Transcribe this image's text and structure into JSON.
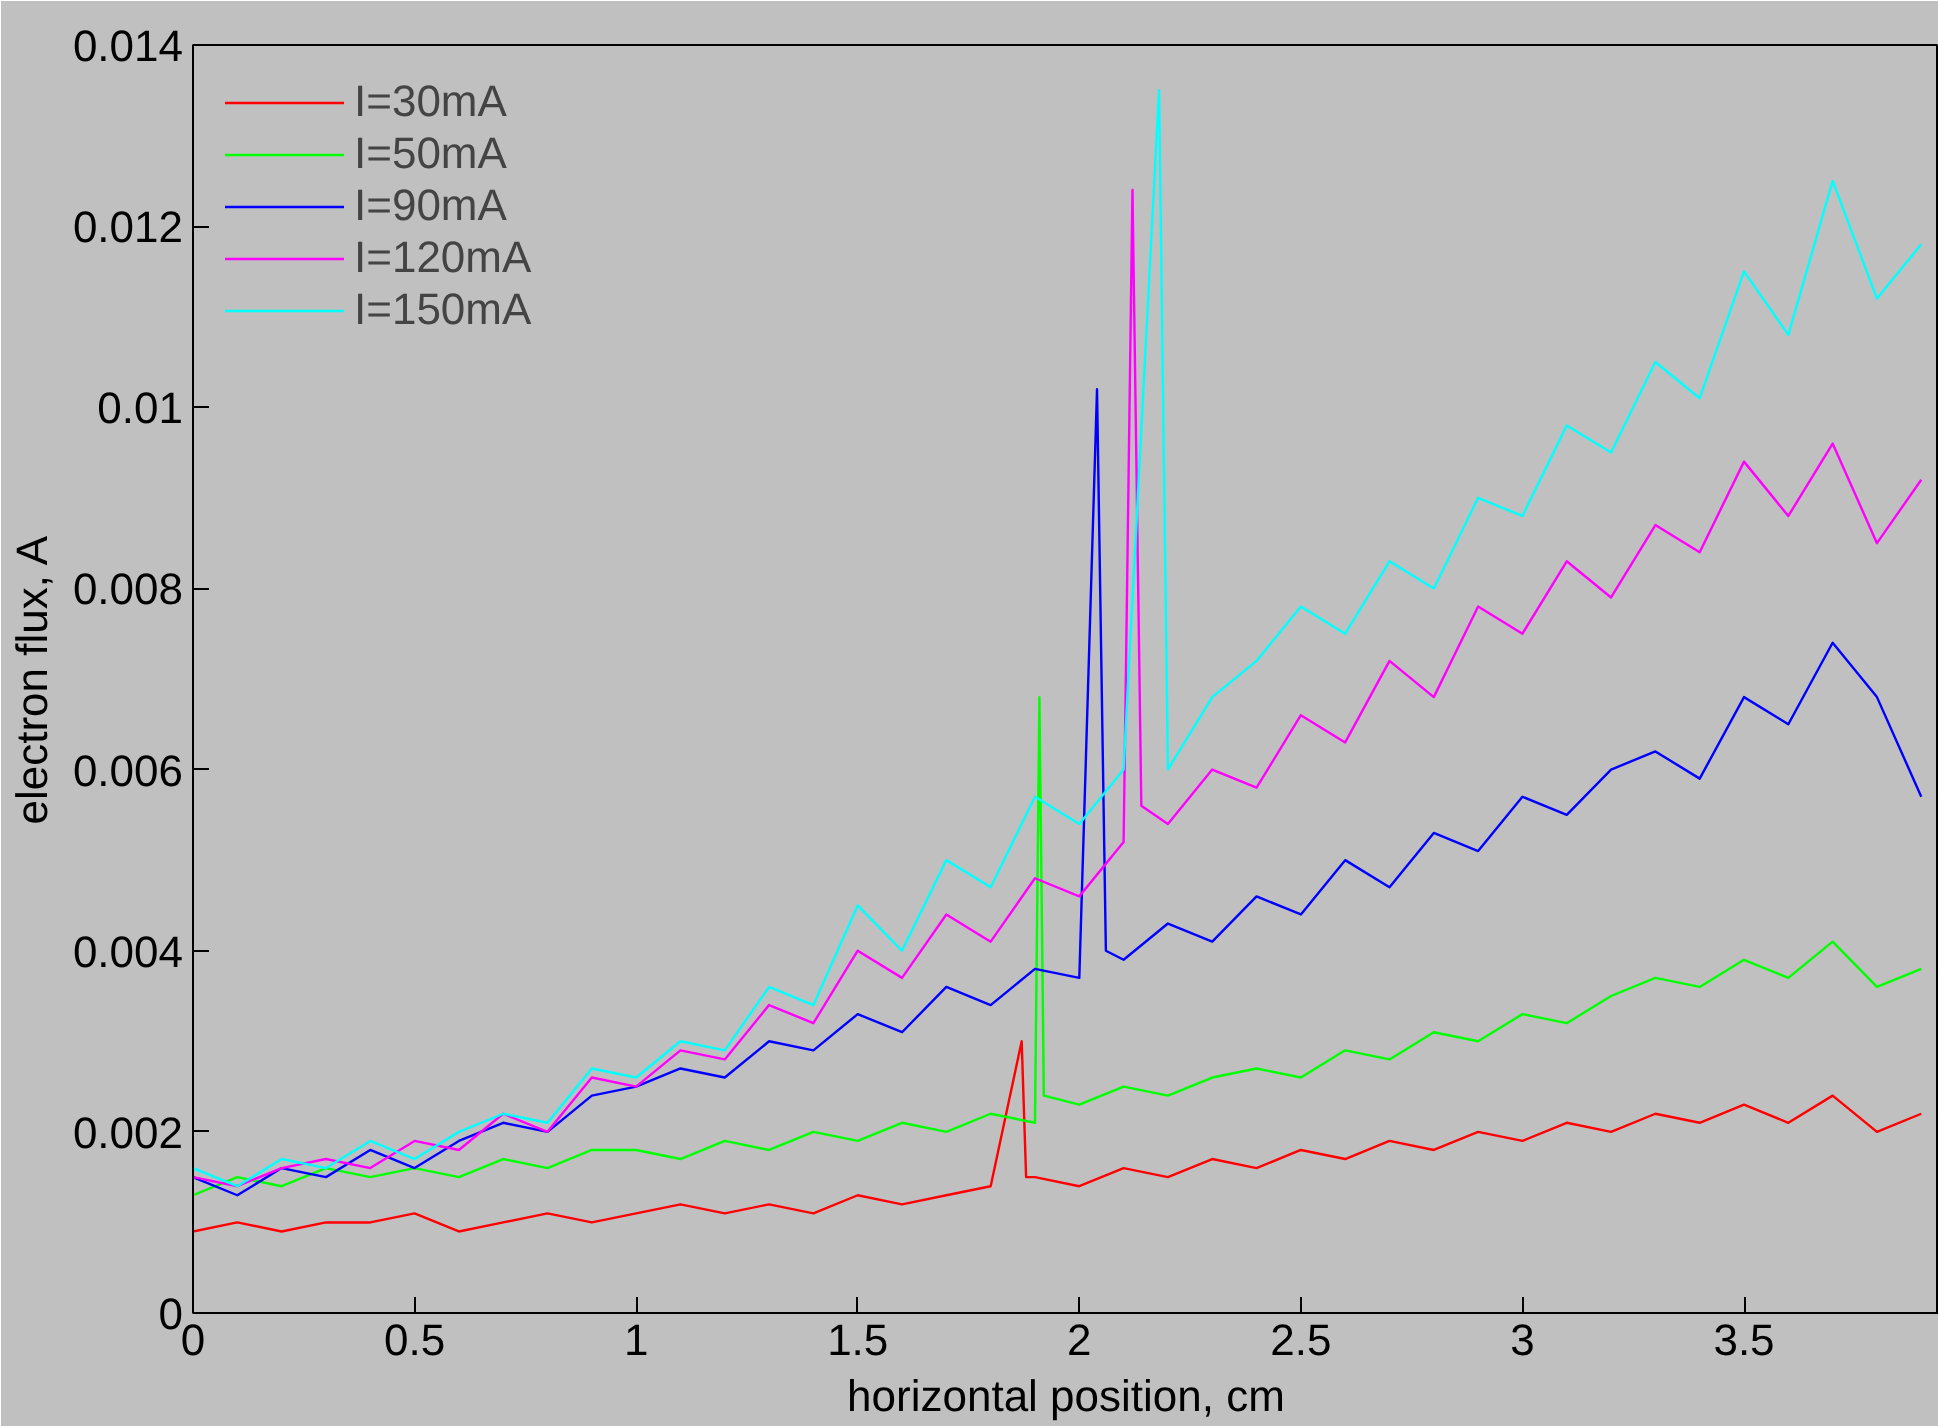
{
  "chart_data": {
    "type": "line",
    "xlabel": "horizontal position, cm",
    "ylabel": "electron flux, A",
    "xlim": [
      0,
      3.94
    ],
    "xticks": [
      0,
      0.5,
      1,
      1.5,
      2,
      2.5,
      3,
      3.5
    ],
    "ylim": [
      0,
      0.014
    ],
    "yticks": [
      0,
      0.002,
      0.004,
      0.006,
      0.008,
      0.01,
      0.012,
      0.014
    ],
    "grid": false,
    "legend": "top left",
    "marker": "none",
    "line_style": "solid",
    "series": [
      {
        "name": "I=30mA",
        "color": "#ff0000",
        "x": [
          0,
          0.1,
          0.2,
          0.3,
          0.4,
          0.5,
          0.6,
          0.7,
          0.8,
          0.9,
          1.0,
          1.1,
          1.2,
          1.3,
          1.4,
          1.5,
          1.6,
          1.7,
          1.8,
          1.87,
          1.88,
          1.9,
          2.0,
          2.1,
          2.2,
          2.3,
          2.4,
          2.5,
          2.6,
          2.7,
          2.8,
          2.9,
          3.0,
          3.1,
          3.2,
          3.3,
          3.4,
          3.5,
          3.6,
          3.7,
          3.8,
          3.9
        ],
        "values": [
          0.0009,
          0.001,
          0.0009,
          0.001,
          0.001,
          0.0011,
          0.0009,
          0.001,
          0.0011,
          0.001,
          0.0011,
          0.0012,
          0.0011,
          0.0012,
          0.0011,
          0.0013,
          0.0012,
          0.0013,
          0.0014,
          0.003,
          0.0015,
          0.0015,
          0.0014,
          0.0016,
          0.0015,
          0.0017,
          0.0016,
          0.0018,
          0.0017,
          0.0019,
          0.0018,
          0.002,
          0.0019,
          0.0021,
          0.002,
          0.0022,
          0.0021,
          0.0023,
          0.0021,
          0.0024,
          0.002,
          0.0022
        ]
      },
      {
        "name": "I=50mA",
        "color": "#00ff00",
        "x": [
          0,
          0.1,
          0.2,
          0.3,
          0.4,
          0.5,
          0.6,
          0.7,
          0.8,
          0.9,
          1.0,
          1.1,
          1.2,
          1.3,
          1.4,
          1.5,
          1.6,
          1.7,
          1.8,
          1.9,
          1.91,
          1.92,
          2.0,
          2.1,
          2.2,
          2.3,
          2.4,
          2.5,
          2.6,
          2.7,
          2.8,
          2.9,
          3.0,
          3.1,
          3.2,
          3.3,
          3.4,
          3.5,
          3.6,
          3.7,
          3.8,
          3.9
        ],
        "values": [
          0.0013,
          0.0015,
          0.0014,
          0.0016,
          0.0015,
          0.0016,
          0.0015,
          0.0017,
          0.0016,
          0.0018,
          0.0018,
          0.0017,
          0.0019,
          0.0018,
          0.002,
          0.0019,
          0.0021,
          0.002,
          0.0022,
          0.0021,
          0.0068,
          0.0024,
          0.0023,
          0.0025,
          0.0024,
          0.0026,
          0.0027,
          0.0026,
          0.0029,
          0.0028,
          0.0031,
          0.003,
          0.0033,
          0.0032,
          0.0035,
          0.0037,
          0.0036,
          0.0039,
          0.0037,
          0.0041,
          0.0036,
          0.0038
        ]
      },
      {
        "name": "I=90mA",
        "color": "#0000ff",
        "x": [
          0,
          0.1,
          0.2,
          0.3,
          0.4,
          0.5,
          0.6,
          0.7,
          0.8,
          0.9,
          1.0,
          1.1,
          1.2,
          1.3,
          1.4,
          1.5,
          1.6,
          1.7,
          1.8,
          1.9,
          2.0,
          2.04,
          2.06,
          2.1,
          2.2,
          2.3,
          2.4,
          2.5,
          2.6,
          2.7,
          2.8,
          2.9,
          3.0,
          3.1,
          3.2,
          3.3,
          3.4,
          3.5,
          3.6,
          3.7,
          3.8,
          3.9
        ],
        "values": [
          0.0015,
          0.0013,
          0.0016,
          0.0015,
          0.0018,
          0.0016,
          0.0019,
          0.0021,
          0.002,
          0.0024,
          0.0025,
          0.0027,
          0.0026,
          0.003,
          0.0029,
          0.0033,
          0.0031,
          0.0036,
          0.0034,
          0.0038,
          0.0037,
          0.0102,
          0.004,
          0.0039,
          0.0043,
          0.0041,
          0.0046,
          0.0044,
          0.005,
          0.0047,
          0.0053,
          0.0051,
          0.0057,
          0.0055,
          0.006,
          0.0062,
          0.0059,
          0.0068,
          0.0065,
          0.0074,
          0.0068,
          0.0057
        ]
      },
      {
        "name": "I=120mA",
        "color": "#ff00ff",
        "x": [
          0,
          0.1,
          0.2,
          0.3,
          0.4,
          0.5,
          0.6,
          0.7,
          0.8,
          0.9,
          1.0,
          1.1,
          1.2,
          1.3,
          1.4,
          1.5,
          1.6,
          1.7,
          1.8,
          1.9,
          2.0,
          2.1,
          2.12,
          2.14,
          2.2,
          2.3,
          2.4,
          2.5,
          2.6,
          2.7,
          2.8,
          2.9,
          3.0,
          3.1,
          3.2,
          3.3,
          3.4,
          3.5,
          3.6,
          3.7,
          3.8,
          3.9
        ],
        "values": [
          0.0015,
          0.0014,
          0.0016,
          0.0017,
          0.0016,
          0.0019,
          0.0018,
          0.0022,
          0.002,
          0.0026,
          0.0025,
          0.0029,
          0.0028,
          0.0034,
          0.0032,
          0.004,
          0.0037,
          0.0044,
          0.0041,
          0.0048,
          0.0046,
          0.0052,
          0.0124,
          0.0056,
          0.0054,
          0.006,
          0.0058,
          0.0066,
          0.0063,
          0.0072,
          0.0068,
          0.0078,
          0.0075,
          0.0083,
          0.0079,
          0.0087,
          0.0084,
          0.0094,
          0.0088,
          0.0096,
          0.0085,
          0.0092
        ]
      },
      {
        "name": "I=150mA",
        "color": "#00ffff",
        "x": [
          0,
          0.1,
          0.2,
          0.3,
          0.4,
          0.5,
          0.6,
          0.7,
          0.8,
          0.9,
          1.0,
          1.1,
          1.2,
          1.3,
          1.4,
          1.5,
          1.6,
          1.7,
          1.8,
          1.9,
          2.0,
          2.1,
          2.18,
          2.2,
          2.3,
          2.4,
          2.5,
          2.6,
          2.7,
          2.8,
          2.9,
          3.0,
          3.1,
          3.2,
          3.3,
          3.4,
          3.5,
          3.6,
          3.7,
          3.8,
          3.9
        ],
        "values": [
          0.0016,
          0.0014,
          0.0017,
          0.0016,
          0.0019,
          0.0017,
          0.002,
          0.0022,
          0.0021,
          0.0027,
          0.0026,
          0.003,
          0.0029,
          0.0036,
          0.0034,
          0.0045,
          0.004,
          0.005,
          0.0047,
          0.0057,
          0.0054,
          0.006,
          0.0135,
          0.006,
          0.0068,
          0.0072,
          0.0078,
          0.0075,
          0.0083,
          0.008,
          0.009,
          0.0088,
          0.0098,
          0.0095,
          0.0105,
          0.0101,
          0.0115,
          0.0108,
          0.0125,
          0.0112,
          0.0118
        ]
      }
    ]
  }
}
